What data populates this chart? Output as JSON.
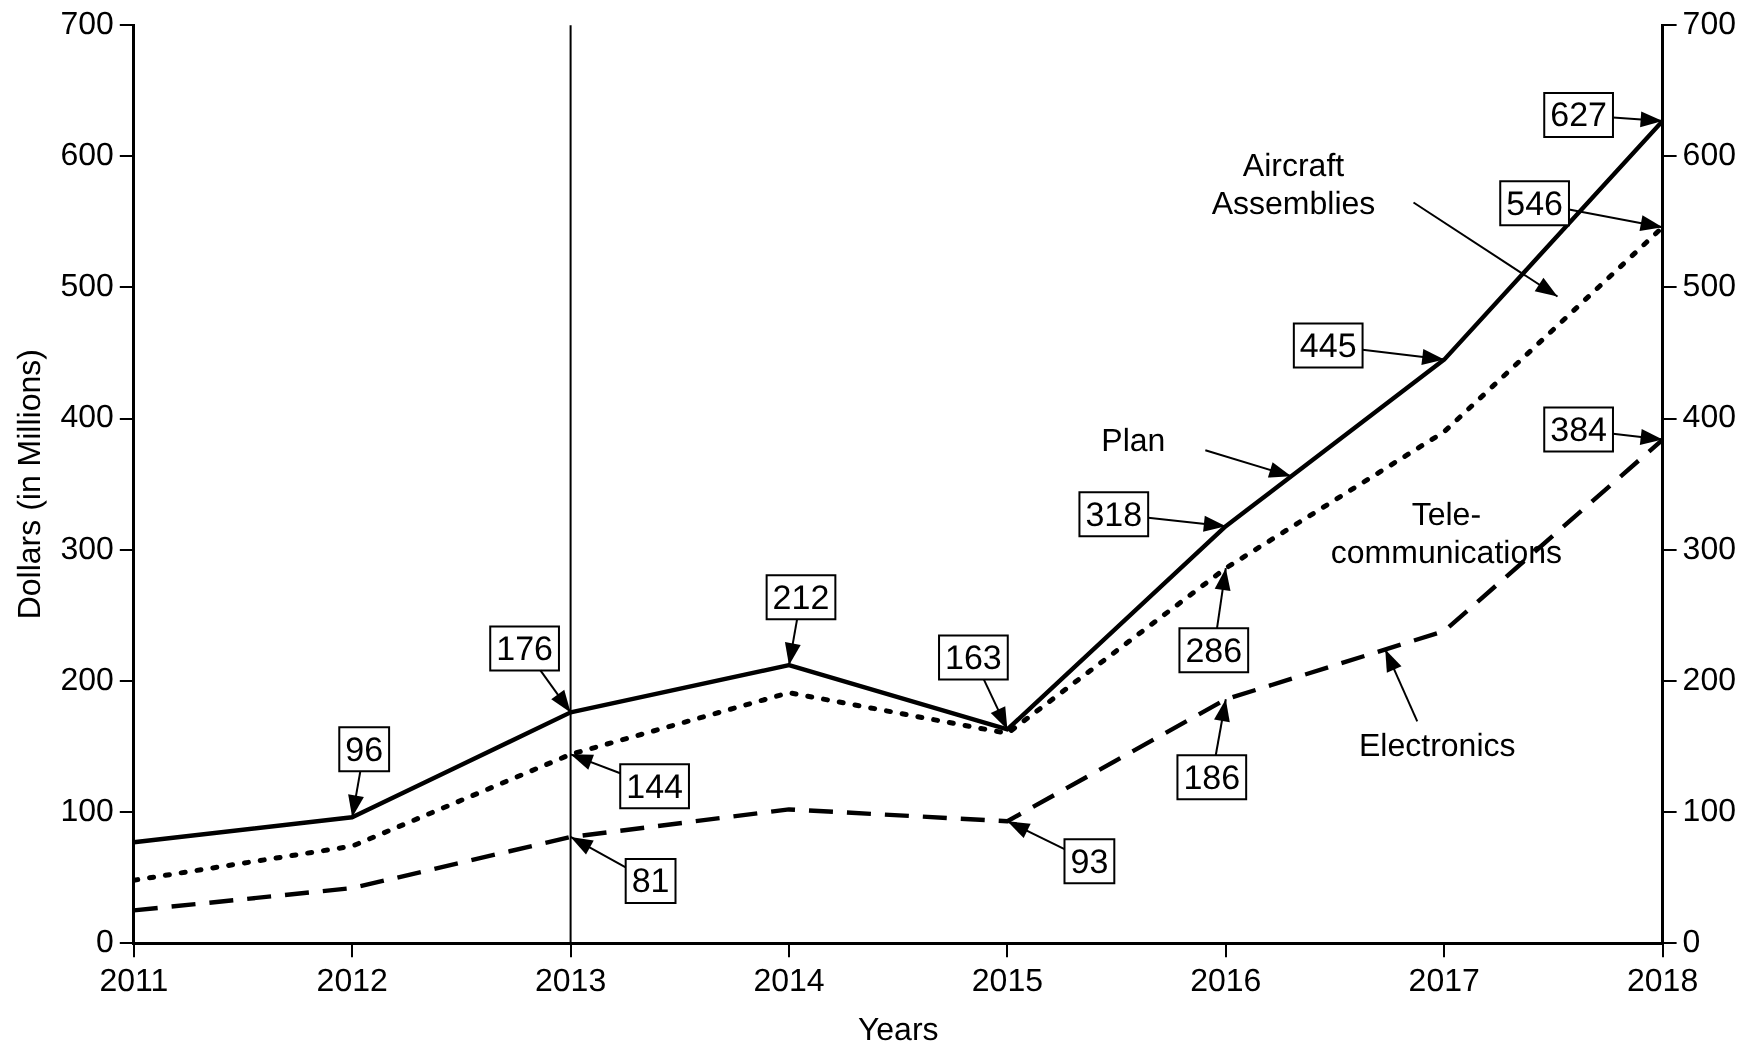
{
  "chart_data": {
    "type": "line",
    "xlabel": "Years",
    "ylabel": "Dollars (in Millions)",
    "x": [
      2011,
      2012,
      2013,
      2014,
      2015,
      2016,
      2017,
      2018
    ],
    "series": [
      {
        "color": "#000000",
        "line_style": "solid",
        "values": [
          77,
          96,
          176,
          212,
          163,
          318,
          445,
          627
        ],
        "value_labels": [
          null,
          "96",
          "176",
          "212",
          "163",
          "318",
          "445",
          "627"
        ]
      },
      {
        "color": "#000000",
        "line_style": "dotted",
        "values": [
          48,
          74,
          144,
          191,
          160,
          286,
          390,
          546
        ],
        "value_labels": [
          null,
          null,
          "144",
          null,
          null,
          "286",
          null,
          "546"
        ]
      },
      {
        "color": "#000000",
        "line_style": "dashed",
        "values": [
          25,
          42,
          81,
          102,
          93,
          186,
          238,
          384
        ],
        "value_labels": [
          null,
          null,
          "81",
          null,
          "93",
          "186",
          null,
          "384"
        ]
      }
    ],
    "xlim": [
      2011,
      2018
    ],
    "xticks": [
      2011,
      2012,
      2013,
      2014,
      2015,
      2016,
      2017,
      2018
    ],
    "ylim": [
      0,
      700
    ],
    "yticks": [
      0,
      100,
      200,
      300,
      400,
      500,
      600,
      700
    ],
    "y2lim": [
      0,
      700
    ],
    "y2ticks": [
      0,
      100,
      200,
      300,
      400,
      500,
      600,
      700
    ],
    "ref_lines": [
      {
        "axis": "x",
        "value": 2013
      }
    ],
    "annotations": [
      "Aircraft\nAssemblies",
      {
        "text": "Plan",
        "x": 2016.3,
        "y": 356
      },
      "Tele-\ncommunications",
      {
        "text": "Electronics",
        "x": 2016.73,
        "y": 224
      }
    ],
    "grid": false,
    "legend": false,
    "marker": "none"
  }
}
